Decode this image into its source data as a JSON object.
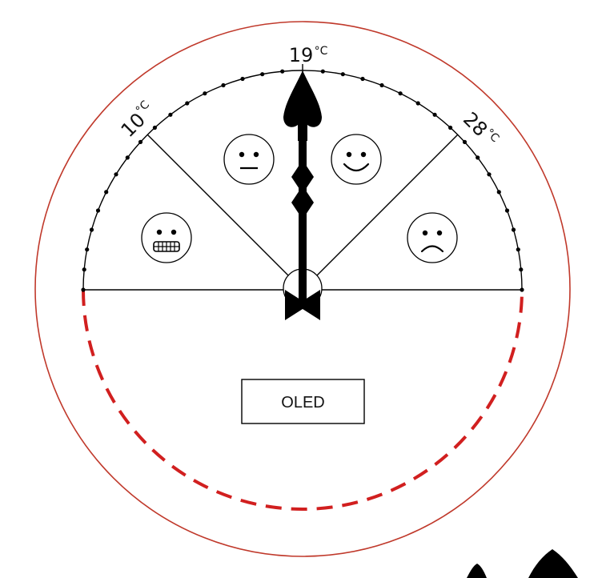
{
  "dial": {
    "labels": [
      {
        "value": "10",
        "unit": "°C"
      },
      {
        "value": "19",
        "unit": "°C"
      },
      {
        "value": "28",
        "unit": "°C"
      }
    ],
    "zones": [
      {
        "face": "grimace-face-icon"
      },
      {
        "face": "neutral-face-icon"
      },
      {
        "face": "smiley-face-icon"
      },
      {
        "face": "frown-face-icon"
      }
    ],
    "needle_reading": "19"
  },
  "display": {
    "label": "OLED"
  },
  "colors": {
    "outline": "#c0392b",
    "dashed_arc": "#d11f1f",
    "ink": "#000000"
  }
}
